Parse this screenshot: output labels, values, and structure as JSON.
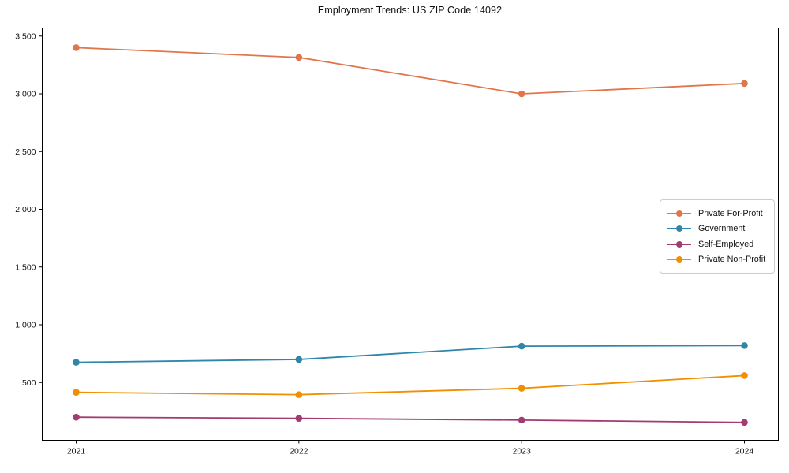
{
  "chart_data": {
    "type": "line",
    "title": "Employment Trends: US ZIP Code 14092",
    "categories": [
      "2021",
      "2022",
      "2023",
      "2024"
    ],
    "series": [
      {
        "name": "Private For-Profit",
        "color": "#e0764b",
        "values": [
          3400,
          3315,
          3000,
          3090
        ]
      },
      {
        "name": "Government",
        "color": "#2e86ab",
        "values": [
          675,
          700,
          815,
          820
        ]
      },
      {
        "name": "Self-Employed",
        "color": "#a23b72",
        "values": [
          200,
          190,
          175,
          155
        ]
      },
      {
        "name": "Private Non-Profit",
        "color": "#f18f01",
        "values": [
          415,
          395,
          450,
          560
        ]
      }
    ],
    "yticks": [
      500,
      1000,
      1500,
      2000,
      2500,
      3000,
      3500
    ],
    "ytick_labels": [
      "500",
      "1,000",
      "1,500",
      "2,000",
      "2,500",
      "3,000",
      "3,500"
    ],
    "ylim": [
      0,
      3570
    ],
    "xlabel": "",
    "ylabel": "",
    "grid": false,
    "legend_position": "center right",
    "axis_color": "#000000",
    "background_color": "#ffffff"
  }
}
